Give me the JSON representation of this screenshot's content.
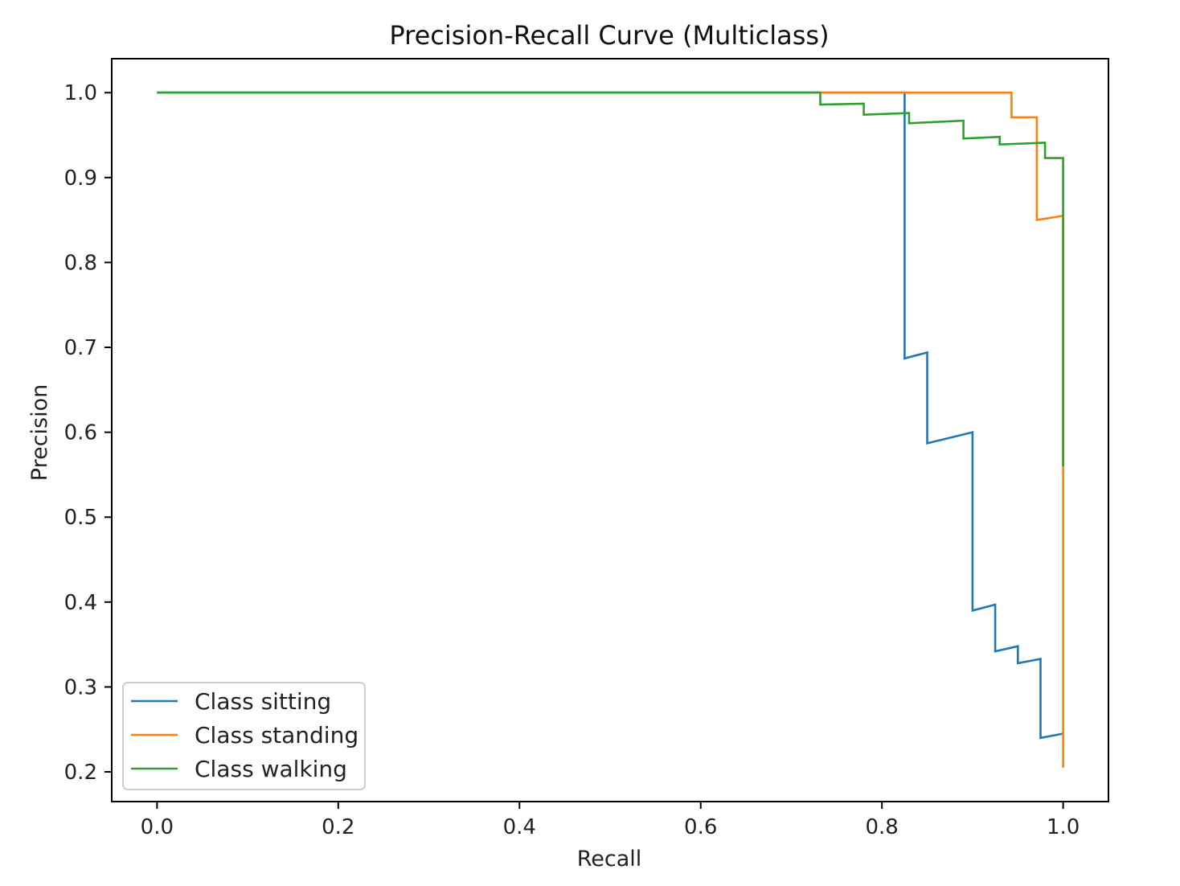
{
  "chart_data": {
    "type": "line",
    "title": "Precision-Recall Curve (Multiclass)",
    "xlabel": "Recall",
    "ylabel": "Precision",
    "xlim": [
      -0.05,
      1.05
    ],
    "ylim": [
      0.165,
      1.04
    ],
    "x_ticks": [
      0.0,
      0.2,
      0.4,
      0.6,
      0.8,
      1.0
    ],
    "x_tick_labels": [
      "0.0",
      "0.2",
      "0.4",
      "0.6",
      "0.8",
      "1.0"
    ],
    "y_ticks": [
      0.2,
      0.3,
      0.4,
      0.5,
      0.6,
      0.7,
      0.8,
      0.9,
      1.0
    ],
    "y_tick_labels": [
      "0.2",
      "0.3",
      "0.4",
      "0.5",
      "0.6",
      "0.7",
      "0.8",
      "0.9",
      "1.0"
    ],
    "grid": false,
    "legend_position": "lower-left",
    "series": [
      {
        "name": "Class sitting",
        "color": "#1f77b4",
        "points": [
          [
            0.0,
            1.0
          ],
          [
            0.825,
            1.0
          ],
          [
            0.825,
            0.687
          ],
          [
            0.85,
            0.694
          ],
          [
            0.85,
            0.587
          ],
          [
            0.9,
            0.6
          ],
          [
            0.9,
            0.39
          ],
          [
            0.925,
            0.397
          ],
          [
            0.925,
            0.342
          ],
          [
            0.95,
            0.348
          ],
          [
            0.95,
            0.328
          ],
          [
            0.975,
            0.333
          ],
          [
            0.975,
            0.24
          ],
          [
            1.0,
            0.245
          ]
        ]
      },
      {
        "name": "Class standing",
        "color": "#ff7f0e",
        "points": [
          [
            0.0,
            1.0
          ],
          [
            0.943,
            1.0
          ],
          [
            0.943,
            0.971
          ],
          [
            0.971,
            0.971
          ],
          [
            0.971,
            0.85
          ],
          [
            1.0,
            0.855
          ],
          [
            1.0,
            0.205
          ]
        ]
      },
      {
        "name": "Class walking",
        "color": "#2ca02c",
        "points": [
          [
            0.0,
            1.0
          ],
          [
            0.732,
            1.0
          ],
          [
            0.732,
            0.986
          ],
          [
            0.78,
            0.987
          ],
          [
            0.78,
            0.974
          ],
          [
            0.83,
            0.976
          ],
          [
            0.83,
            0.964
          ],
          [
            0.89,
            0.967
          ],
          [
            0.89,
            0.946
          ],
          [
            0.93,
            0.948
          ],
          [
            0.93,
            0.939
          ],
          [
            0.98,
            0.941
          ],
          [
            0.98,
            0.923
          ],
          [
            1.0,
            0.923
          ],
          [
            1.0,
            0.56
          ]
        ]
      }
    ]
  }
}
